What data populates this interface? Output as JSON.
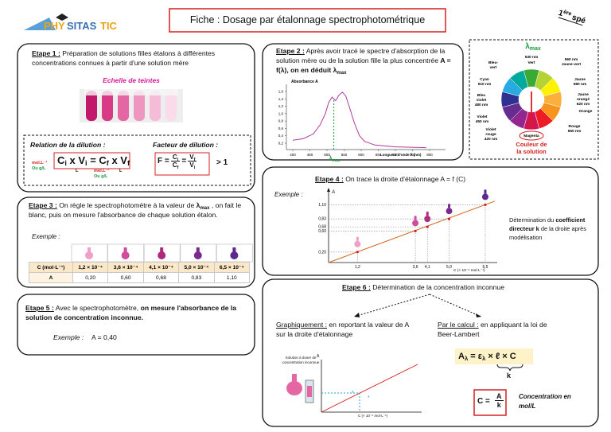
{
  "header": {
    "logo_a": "PHY",
    "logo_b": "SITAS",
    "logo_c": "TIC",
    "title": "Fiche :  Dosage par étalonnage spectrophotométrique",
    "level_num": "1",
    "level_sup": "ère",
    "level_word": "spé"
  },
  "etape1": {
    "label": "Etape 1 :",
    "text": "Préparation de solutions filles étalons à différentes concentrations connues à partir d'une solution mère",
    "scale": "Echelle de teintes",
    "dilution": {
      "title": "Relation de la dilution :",
      "c1": "C",
      "i1": "i",
      "x1": " x V",
      "i2": "i",
      "eq": " = C",
      "f1": "f",
      "x2": " x V",
      "f2": "f",
      "unit_c1": "mol.L⁻¹",
      "unit_c1b": "Ou g/L",
      "unit_v1": "L",
      "unit_c2": "mol.L⁻¹",
      "unit_c2b": "Ou g/L",
      "unit_v2": "L"
    },
    "factor": {
      "title": "Facteur de dilution :",
      "f": "F =",
      "cn": "C",
      "cn_sub": "i",
      "cd": "C",
      "cd_sub": "f",
      "eq": "=",
      "vn": "V",
      "vn_sub": "f",
      "vd": "V",
      "vd_sub": "i",
      "gt": "> 1"
    }
  },
  "etape2": {
    "label": "Etape 2 :",
    "text": "Après avoir tracé le spectre d'absorption de la solution mère ou de la solution fille la plus concentrée ",
    "bold": "A = f(λ), on en déduit λ",
    "bold_sub": "max",
    "spectrum": {
      "y_label": "Absorbance A",
      "x_label": "Longueur d'onde λ (nm)",
      "lambda": "λ",
      "lambda_sub": "max",
      "xticks": [
        400,
        450,
        500,
        550,
        600,
        650,
        700,
        750,
        800
      ],
      "yticks": [
        {
          "value": 0.2,
          "label": "0,2"
        },
        {
          "value": 0.4,
          "label": "0,4"
        },
        {
          "value": 0.6,
          "label": "0,6"
        },
        {
          "value": 0.8,
          "label": "0,8"
        },
        {
          "value": 1.0,
          "label": "1,0"
        },
        {
          "value": 1.2,
          "label": "1,2"
        },
        {
          "value": 1.4,
          "label": "1,4"
        },
        {
          "value": 1.6,
          "label": "1,6"
        }
      ]
    }
  },
  "color_wheel": {
    "lambda": "λ",
    "lambda_sub": "max",
    "labels": [
      "Bleu-",
      "vert",
      "530 nm",
      "Vert",
      "560 nm",
      "Jaune-vert",
      "Cyan",
      "510 nm",
      "Jaune",
      "580 nm",
      "Bleu",
      "violet",
      "480 nm",
      "Jaune",
      "orangé",
      "620 nm",
      "Violet",
      "450 nm",
      "Orange",
      "Violet",
      "rouge",
      "420 nm",
      "Rouge",
      "650 nm",
      "Magenta"
    ],
    "solution": [
      "Couleur de",
      "la solution"
    ]
  },
  "etape3": {
    "label": "Etape 3 :",
    "text": "On règle le spectrophotomètre à la valeur de ",
    "bold": "λ",
    "bold_sub": "max",
    "text2": " , on fait le blanc, puis on mesure l'absorbance de chaque solution étalon.",
    "example": "Exemple :",
    "table": {
      "rows": [
        [
          "C (mol·L⁻¹)",
          "1,2 × 10⁻⁴",
          "3,6 × 10⁻⁴",
          "4,1 × 10⁻⁴",
          "5,0 × 10⁻⁴",
          "6,5 × 10⁻⁴"
        ],
        [
          "A",
          "0,20",
          "0,60",
          "0,68",
          "0,83",
          "1,10"
        ]
      ]
    }
  },
  "etape4": {
    "label": "Etape 4 :",
    "text": "On trace la droite d'étalonnage A = f (C)",
    "example": "Exemple :",
    "graph": {
      "y_label": "A",
      "x_label": "C (× 10⁻⁴ mol·L⁻¹)",
      "x": [
        {
          "value": 1.2,
          "label": "1,2"
        },
        {
          "value": 3.6,
          "label": "3,6"
        },
        {
          "value": 4.1,
          "label": "4,1"
        },
        {
          "value": 5.0,
          "label": "5,0"
        },
        {
          "value": 6.5,
          "label": "6,5"
        }
      ],
      "y": [
        {
          "value": 0.2,
          "label": "0,20"
        },
        {
          "value": 0.6,
          "label": "0,60"
        },
        {
          "value": 0.68,
          "label": "0,68"
        },
        {
          "value": 0.83,
          "label": "0,83"
        },
        {
          "value": 1.1,
          "label": "1,10"
        }
      ]
    },
    "note": "Détermination du ",
    "note_bold": "coefficient directeur k",
    "note2": " de la droite après modélisation"
  },
  "etape5": {
    "label": "Etape 5 :",
    "text": " Avec le spectrophotomètre, ",
    "bold": "on mesure l'absorbance de la solution de concentration inconnue.",
    "example": "Exemple :",
    "value": "A  =  0,40"
  },
  "etape6": {
    "label": "Etape 6 :",
    "title": " Détermination de la concentration inconnue",
    "graph_title": "Graphiquement :",
    "graph_text": " en reportant la valeur de A sur la droite d'étalonnage",
    "calc_title": "Par le calcul :",
    "calc_text": " en appliquant la loi de Beer-Lambert",
    "figure": {
      "solution": "Solution à doser de concentration inconnue",
      "a": "A",
      "x_label": "C (× 10⁻⁴ mol·L⁻¹)"
    },
    "law": {
      "a": "A",
      "a_sub": "λ",
      "eq": " = ε",
      "e_sub": "λ",
      "rest": " × ℓ × C",
      "k": "k"
    },
    "result": {
      "c": "C =",
      "num": "A",
      "den": "k",
      "unit": "Concentration en mol/L"
    }
  }
}
